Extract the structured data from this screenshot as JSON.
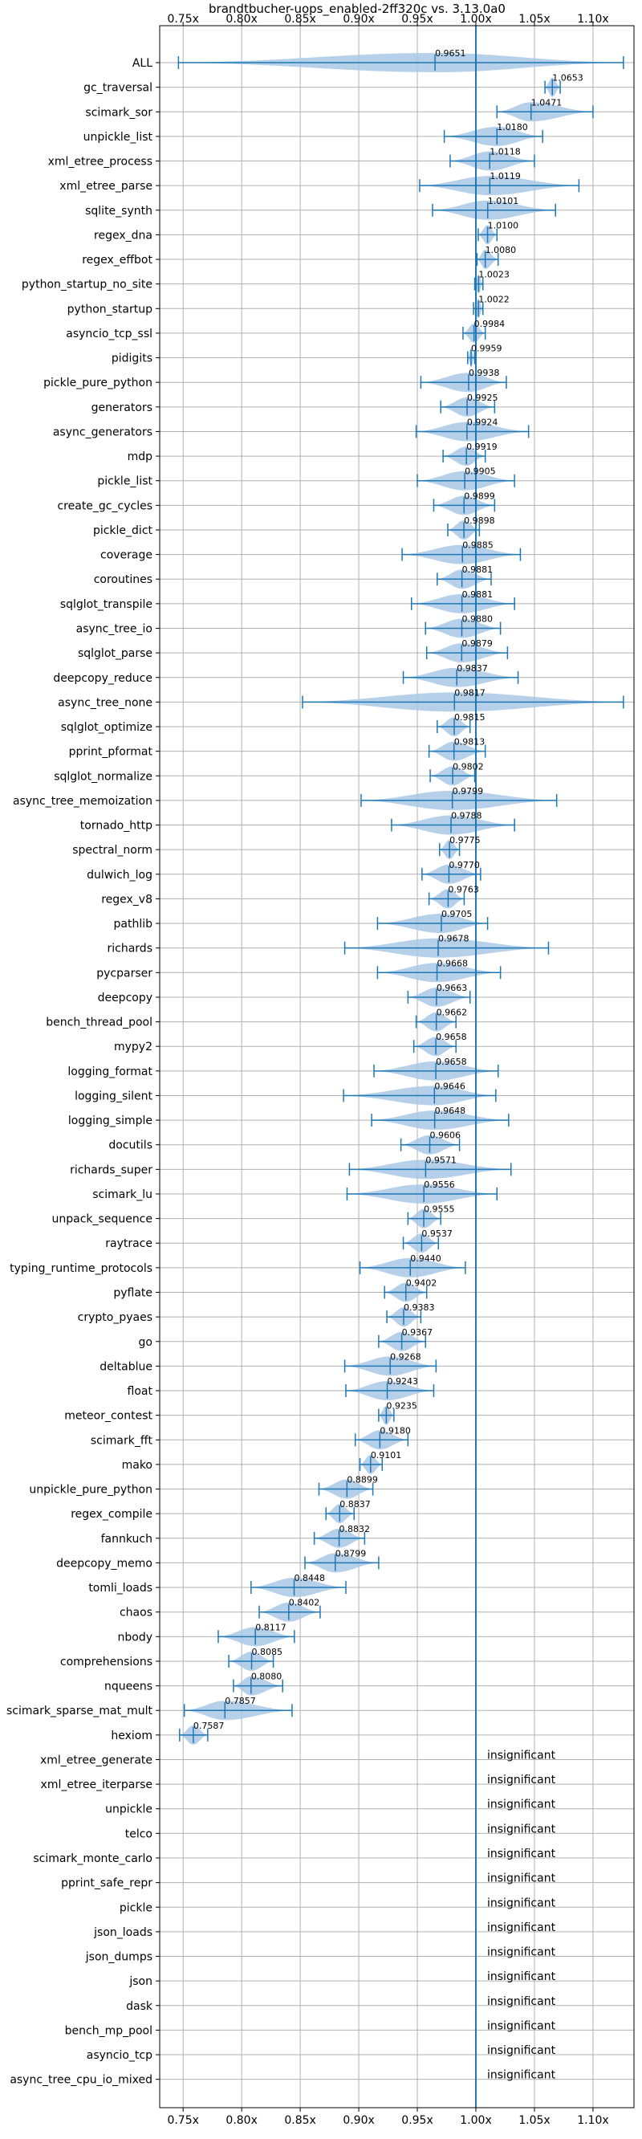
{
  "chart_data": {
    "type": "violin",
    "title": "brandtbucher-uops_enabled-2ff320c vs. 3.13.0a0",
    "xlim": [
      0.73,
      1.135
    ],
    "xticks": [
      0.75,
      0.8,
      0.85,
      0.9,
      0.95,
      1.0,
      1.05,
      1.1
    ],
    "xtick_labels": [
      "0.75x",
      "0.80x",
      "0.85x",
      "0.90x",
      "0.95x",
      "1.00x",
      "1.05x",
      "1.10x"
    ],
    "reference_line": 1.0,
    "grid": true,
    "colors": {
      "violin": "#a9c8e6",
      "whisker": "#1f77b4",
      "grid": "#b0b0b0"
    },
    "benchmarks": [
      {
        "name": "ALL",
        "value": 0.9651,
        "label": "0.9651",
        "min": 0.746,
        "max": 1.126
      },
      {
        "name": "gc_traversal",
        "value": 1.0653,
        "label": "1.0653",
        "min": 1.059,
        "max": 1.072
      },
      {
        "name": "scimark_sor",
        "value": 1.0471,
        "label": "1.0471",
        "min": 1.018,
        "max": 1.1
      },
      {
        "name": "unpickle_list",
        "value": 1.018,
        "label": "1.0180",
        "min": 0.973,
        "max": 1.057
      },
      {
        "name": "xml_etree_process",
        "value": 1.0118,
        "label": "1.0118",
        "min": 0.978,
        "max": 1.05
      },
      {
        "name": "xml_etree_parse",
        "value": 1.0119,
        "label": "1.0119",
        "min": 0.952,
        "max": 1.088
      },
      {
        "name": "sqlite_synth",
        "value": 1.0101,
        "label": "1.0101",
        "min": 0.963,
        "max": 1.068
      },
      {
        "name": "regex_dna",
        "value": 1.01,
        "label": "1.0100",
        "min": 1.002,
        "max": 1.018
      },
      {
        "name": "regex_effbot",
        "value": 1.008,
        "label": "1.0080",
        "min": 1.001,
        "max": 1.019
      },
      {
        "name": "python_startup_no_site",
        "value": 1.0023,
        "label": "1.0023",
        "min": 0.999,
        "max": 1.006
      },
      {
        "name": "python_startup",
        "value": 1.0022,
        "label": "1.0022",
        "min": 0.998,
        "max": 1.006
      },
      {
        "name": "asyncio_tcp_ssl",
        "value": 0.9984,
        "label": "0.9984",
        "min": 0.989,
        "max": 1.008
      },
      {
        "name": "pidigits",
        "value": 0.9959,
        "label": "0.9959",
        "min": 0.993,
        "max": 0.999
      },
      {
        "name": "pickle_pure_python",
        "value": 0.9938,
        "label": "0.9938",
        "min": 0.953,
        "max": 1.026
      },
      {
        "name": "generators",
        "value": 0.9925,
        "label": "0.9925",
        "min": 0.97,
        "max": 1.016
      },
      {
        "name": "async_generators",
        "value": 0.9924,
        "label": "0.9924",
        "min": 0.949,
        "max": 1.045
      },
      {
        "name": "mdp",
        "value": 0.9919,
        "label": "0.9919",
        "min": 0.972,
        "max": 1.008
      },
      {
        "name": "pickle_list",
        "value": 0.9905,
        "label": "0.9905",
        "min": 0.95,
        "max": 1.033
      },
      {
        "name": "create_gc_cycles",
        "value": 0.9899,
        "label": "0.9899",
        "min": 0.964,
        "max": 1.016
      },
      {
        "name": "pickle_dict",
        "value": 0.9898,
        "label": "0.9898",
        "min": 0.976,
        "max": 1.003
      },
      {
        "name": "coverage",
        "value": 0.9885,
        "label": "0.9885",
        "min": 0.937,
        "max": 1.038
      },
      {
        "name": "coroutines",
        "value": 0.9881,
        "label": "0.9881",
        "min": 0.967,
        "max": 1.013
      },
      {
        "name": "sqlglot_transpile",
        "value": 0.9881,
        "label": "0.9881",
        "min": 0.945,
        "max": 1.033
      },
      {
        "name": "async_tree_io",
        "value": 0.988,
        "label": "0.9880",
        "min": 0.957,
        "max": 1.021
      },
      {
        "name": "sqlglot_parse",
        "value": 0.9879,
        "label": "0.9879",
        "min": 0.958,
        "max": 1.027
      },
      {
        "name": "deepcopy_reduce",
        "value": 0.9837,
        "label": "0.9837",
        "min": 0.938,
        "max": 1.036
      },
      {
        "name": "async_tree_none",
        "value": 0.9817,
        "label": "0.9817",
        "min": 0.852,
        "max": 1.126
      },
      {
        "name": "sqlglot_optimize",
        "value": 0.9815,
        "label": "0.9815",
        "min": 0.967,
        "max": 0.995
      },
      {
        "name": "pprint_pformat",
        "value": 0.9813,
        "label": "0.9813",
        "min": 0.96,
        "max": 1.008
      },
      {
        "name": "sqlglot_normalize",
        "value": 0.9802,
        "label": "0.9802",
        "min": 0.961,
        "max": 0.999
      },
      {
        "name": "async_tree_memoization",
        "value": 0.9799,
        "label": "0.9799",
        "min": 0.902,
        "max": 1.069
      },
      {
        "name": "tornado_http",
        "value": 0.9788,
        "label": "0.9788",
        "min": 0.928,
        "max": 1.033
      },
      {
        "name": "spectral_norm",
        "value": 0.9775,
        "label": "0.9775",
        "min": 0.969,
        "max": 0.986
      },
      {
        "name": "dulwich_log",
        "value": 0.977,
        "label": "0.9770",
        "min": 0.954,
        "max": 1.004
      },
      {
        "name": "regex_v8",
        "value": 0.9763,
        "label": "0.9763",
        "min": 0.96,
        "max": 0.99
      },
      {
        "name": "pathlib",
        "value": 0.9705,
        "label": "0.9705",
        "min": 0.916,
        "max": 1.01
      },
      {
        "name": "richards",
        "value": 0.9678,
        "label": "0.9678",
        "min": 0.888,
        "max": 1.062
      },
      {
        "name": "pycparser",
        "value": 0.9668,
        "label": "0.9668",
        "min": 0.916,
        "max": 1.021
      },
      {
        "name": "deepcopy",
        "value": 0.9663,
        "label": "0.9663",
        "min": 0.942,
        "max": 0.995
      },
      {
        "name": "bench_thread_pool",
        "value": 0.9662,
        "label": "0.9662",
        "min": 0.949,
        "max": 0.983
      },
      {
        "name": "mypy2",
        "value": 0.9658,
        "label": "0.9658",
        "min": 0.947,
        "max": 0.983
      },
      {
        "name": "logging_format",
        "value": 0.9658,
        "label": "0.9658",
        "min": 0.913,
        "max": 1.019
      },
      {
        "name": "logging_silent",
        "value": 0.9646,
        "label": "0.9646",
        "min": 0.887,
        "max": 1.017
      },
      {
        "name": "logging_simple",
        "value": 0.9648,
        "label": "0.9648",
        "min": 0.911,
        "max": 1.028
      },
      {
        "name": "docutils",
        "value": 0.9606,
        "label": "0.9606",
        "min": 0.936,
        "max": 0.986
      },
      {
        "name": "richards_super",
        "value": 0.9571,
        "label": "0.9571",
        "min": 0.892,
        "max": 1.03
      },
      {
        "name": "scimark_lu",
        "value": 0.9556,
        "label": "0.9556",
        "min": 0.89,
        "max": 1.018
      },
      {
        "name": "unpack_sequence",
        "value": 0.9555,
        "label": "0.9555",
        "min": 0.942,
        "max": 0.97
      },
      {
        "name": "raytrace",
        "value": 0.9537,
        "label": "0.9537",
        "min": 0.938,
        "max": 0.968
      },
      {
        "name": "typing_runtime_protocols",
        "value": 0.944,
        "label": "0.9440",
        "min": 0.901,
        "max": 0.991
      },
      {
        "name": "pyflate",
        "value": 0.9402,
        "label": "0.9402",
        "min": 0.922,
        "max": 0.958
      },
      {
        "name": "crypto_pyaes",
        "value": 0.9383,
        "label": "0.9383",
        "min": 0.924,
        "max": 0.953
      },
      {
        "name": "go",
        "value": 0.9367,
        "label": "0.9367",
        "min": 0.917,
        "max": 0.957
      },
      {
        "name": "deltablue",
        "value": 0.9268,
        "label": "0.9268",
        "min": 0.888,
        "max": 0.966
      },
      {
        "name": "float",
        "value": 0.9243,
        "label": "0.9243",
        "min": 0.889,
        "max": 0.964
      },
      {
        "name": "meteor_contest",
        "value": 0.9235,
        "label": "0.9235",
        "min": 0.917,
        "max": 0.93
      },
      {
        "name": "scimark_fft",
        "value": 0.918,
        "label": "0.9180",
        "min": 0.897,
        "max": 0.942
      },
      {
        "name": "mako",
        "value": 0.9101,
        "label": "0.9101",
        "min": 0.901,
        "max": 0.92
      },
      {
        "name": "unpickle_pure_python",
        "value": 0.8899,
        "label": "0.8899",
        "min": 0.866,
        "max": 0.912
      },
      {
        "name": "regex_compile",
        "value": 0.8837,
        "label": "0.8837",
        "min": 0.872,
        "max": 0.896
      },
      {
        "name": "fannkuch",
        "value": 0.8832,
        "label": "0.8832",
        "min": 0.862,
        "max": 0.905
      },
      {
        "name": "deepcopy_memo",
        "value": 0.8799,
        "label": "0.8799",
        "min": 0.854,
        "max": 0.917
      },
      {
        "name": "tomli_loads",
        "value": 0.8448,
        "label": "0.8448",
        "min": 0.808,
        "max": 0.889
      },
      {
        "name": "chaos",
        "value": 0.8402,
        "label": "0.8402",
        "min": 0.815,
        "max": 0.867
      },
      {
        "name": "nbody",
        "value": 0.8117,
        "label": "0.8117",
        "min": 0.78,
        "max": 0.845
      },
      {
        "name": "comprehensions",
        "value": 0.8085,
        "label": "0.8085",
        "min": 0.789,
        "max": 0.827
      },
      {
        "name": "nqueens",
        "value": 0.808,
        "label": "0.8080",
        "min": 0.793,
        "max": 0.835
      },
      {
        "name": "scimark_sparse_mat_mult",
        "value": 0.7857,
        "label": "0.7857",
        "min": 0.751,
        "max": 0.843
      },
      {
        "name": "hexiom",
        "value": 0.7587,
        "label": "0.7587",
        "min": 0.747,
        "max": 0.771
      },
      {
        "name": "xml_etree_generate",
        "value": null,
        "label": "insignificant"
      },
      {
        "name": "xml_etree_iterparse",
        "value": null,
        "label": "insignificant"
      },
      {
        "name": "unpickle",
        "value": null,
        "label": "insignificant"
      },
      {
        "name": "telco",
        "value": null,
        "label": "insignificant"
      },
      {
        "name": "scimark_monte_carlo",
        "value": null,
        "label": "insignificant"
      },
      {
        "name": "pprint_safe_repr",
        "value": null,
        "label": "insignificant"
      },
      {
        "name": "pickle",
        "value": null,
        "label": "insignificant"
      },
      {
        "name": "json_loads",
        "value": null,
        "label": "insignificant"
      },
      {
        "name": "json_dumps",
        "value": null,
        "label": "insignificant"
      },
      {
        "name": "json",
        "value": null,
        "label": "insignificant"
      },
      {
        "name": "dask",
        "value": null,
        "label": "insignificant"
      },
      {
        "name": "bench_mp_pool",
        "value": null,
        "label": "insignificant"
      },
      {
        "name": "asyncio_tcp",
        "value": null,
        "label": "insignificant"
      },
      {
        "name": "async_tree_cpu_io_mixed",
        "value": null,
        "label": "insignificant"
      }
    ]
  }
}
